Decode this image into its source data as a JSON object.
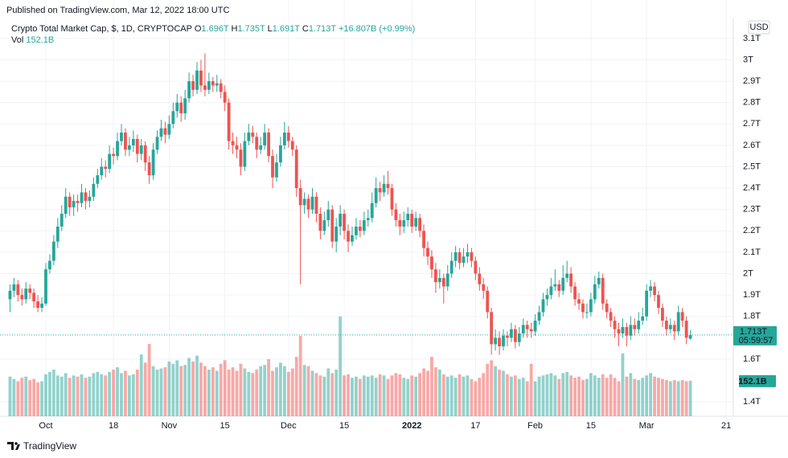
{
  "header": {
    "published": "Published on TradingView.com, Mar 12, 2022 18:00 UTC",
    "symbol": "Crypto Total Market Cap, $, 1D, CRYPTOCAP",
    "ohlc": [
      {
        "key": "O",
        "value": "1.696T"
      },
      {
        "key": "H",
        "value": "1.735T"
      },
      {
        "key": "L",
        "value": "1.691T"
      },
      {
        "key": "C",
        "value": "1.713T"
      }
    ],
    "change": "+16.807B (+0.99%)",
    "volume": {
      "key": "Vol",
      "value": "152.1B"
    }
  },
  "footer": "TradingView",
  "chart_data": {
    "type": "candlestick",
    "currency": "USD",
    "up_color": "#26a69a",
    "down_color": "#ef5350",
    "ylim": [
      1.333,
      3.186
    ],
    "yticks": [
      {
        "value": 3.1,
        "label": "3.1T"
      },
      {
        "value": 3.0,
        "label": "3T"
      },
      {
        "value": 2.9,
        "label": "2.9T"
      },
      {
        "value": 2.8,
        "label": "2.8T"
      },
      {
        "value": 2.7,
        "label": "2.7T"
      },
      {
        "value": 2.6,
        "label": "2.6T"
      },
      {
        "value": 2.5,
        "label": "2.5T"
      },
      {
        "value": 2.4,
        "label": "2.4T"
      },
      {
        "value": 2.3,
        "label": "2.3T"
      },
      {
        "value": 2.2,
        "label": "2.2T"
      },
      {
        "value": 2.1,
        "label": "2.1T"
      },
      {
        "value": 2.0,
        "label": "2T"
      },
      {
        "value": 1.9,
        "label": "1.9T"
      },
      {
        "value": 1.8,
        "label": "1.8T"
      },
      {
        "value": 1.6,
        "label": "1.6T"
      },
      {
        "value": 1.4,
        "label": "1.4T"
      }
    ],
    "xlim": [
      -0.9,
      181.8
    ],
    "xticks": [
      {
        "value": 9,
        "label": "Oct"
      },
      {
        "value": 26,
        "label": "18"
      },
      {
        "value": 40,
        "label": "Nov"
      },
      {
        "value": 54,
        "label": "15"
      },
      {
        "value": 70,
        "label": "Dec"
      },
      {
        "value": 84,
        "label": "15"
      },
      {
        "value": 101,
        "label": "2022"
      },
      {
        "value": 117,
        "label": "17"
      },
      {
        "value": 132,
        "label": "Feb"
      },
      {
        "value": 146,
        "label": "15"
      },
      {
        "value": 160,
        "label": "Mar"
      },
      {
        "value": 180,
        "label": "21"
      }
    ],
    "last_price_label": "1.713T",
    "countdown": "05:59:57",
    "last_volume_label": "152.1B",
    "candles": [
      [
        1.88,
        1.95,
        1.82,
        1.92
      ],
      [
        1.92,
        1.98,
        1.89,
        1.95
      ],
      [
        1.95,
        1.97,
        1.87,
        1.9
      ],
      [
        1.9,
        1.93,
        1.85,
        1.88
      ],
      [
        1.88,
        1.96,
        1.86,
        1.93
      ],
      [
        1.93,
        1.95,
        1.88,
        1.91
      ],
      [
        1.91,
        1.93,
        1.84,
        1.87
      ],
      [
        1.87,
        1.9,
        1.82,
        1.84
      ],
      [
        1.84,
        1.89,
        1.82,
        1.86
      ],
      [
        1.86,
        2.05,
        1.85,
        2.02
      ],
      [
        2.02,
        2.09,
        2.0,
        2.06
      ],
      [
        2.06,
        2.18,
        2.04,
        2.15
      ],
      [
        2.15,
        2.26,
        2.12,
        2.22
      ],
      [
        2.22,
        2.32,
        2.2,
        2.28
      ],
      [
        2.28,
        2.4,
        2.26,
        2.36
      ],
      [
        2.36,
        2.38,
        2.27,
        2.31
      ],
      [
        2.31,
        2.37,
        2.27,
        2.34
      ],
      [
        2.34,
        2.37,
        2.29,
        2.33
      ],
      [
        2.33,
        2.42,
        2.31,
        2.38
      ],
      [
        2.38,
        2.4,
        2.3,
        2.34
      ],
      [
        2.34,
        2.39,
        2.31,
        2.36
      ],
      [
        2.36,
        2.45,
        2.34,
        2.42
      ],
      [
        2.42,
        2.49,
        2.4,
        2.46
      ],
      [
        2.46,
        2.54,
        2.44,
        2.5
      ],
      [
        2.5,
        2.53,
        2.45,
        2.49
      ],
      [
        2.49,
        2.6,
        2.47,
        2.56
      ],
      [
        2.56,
        2.59,
        2.51,
        2.55
      ],
      [
        2.55,
        2.66,
        2.53,
        2.62
      ],
      [
        2.62,
        2.7,
        2.6,
        2.66
      ],
      [
        2.66,
        2.68,
        2.55,
        2.58
      ],
      [
        2.58,
        2.64,
        2.55,
        2.6
      ],
      [
        2.6,
        2.67,
        2.57,
        2.63
      ],
      [
        2.63,
        2.65,
        2.52,
        2.56
      ],
      [
        2.56,
        2.63,
        2.53,
        2.6
      ],
      [
        2.6,
        2.62,
        2.48,
        2.52
      ],
      [
        2.52,
        2.55,
        2.42,
        2.46
      ],
      [
        2.46,
        2.61,
        2.44,
        2.58
      ],
      [
        2.58,
        2.67,
        2.56,
        2.64
      ],
      [
        2.64,
        2.72,
        2.62,
        2.68
      ],
      [
        2.68,
        2.71,
        2.61,
        2.65
      ],
      [
        2.65,
        2.74,
        2.63,
        2.7
      ],
      [
        2.7,
        2.8,
        2.68,
        2.76
      ],
      [
        2.76,
        2.84,
        2.73,
        2.8
      ],
      [
        2.8,
        2.83,
        2.71,
        2.75
      ],
      [
        2.75,
        2.86,
        2.72,
        2.82
      ],
      [
        2.82,
        2.94,
        2.8,
        2.9
      ],
      [
        2.9,
        2.93,
        2.83,
        2.86
      ],
      [
        2.86,
        2.99,
        2.84,
        2.95
      ],
      [
        2.95,
        3.0,
        2.85,
        2.88
      ],
      [
        2.88,
        3.03,
        2.83,
        2.86
      ],
      [
        2.86,
        2.94,
        2.84,
        2.9
      ],
      [
        2.9,
        2.92,
        2.85,
        2.88
      ],
      [
        2.88,
        2.93,
        2.85,
        2.89
      ],
      [
        2.89,
        2.91,
        2.82,
        2.85
      ],
      [
        2.85,
        2.88,
        2.76,
        2.8
      ],
      [
        2.8,
        2.82,
        2.58,
        2.62
      ],
      [
        2.62,
        2.66,
        2.56,
        2.6
      ],
      [
        2.6,
        2.64,
        2.54,
        2.58
      ],
      [
        2.58,
        2.61,
        2.46,
        2.5
      ],
      [
        2.5,
        2.66,
        2.48,
        2.62
      ],
      [
        2.62,
        2.7,
        2.6,
        2.66
      ],
      [
        2.66,
        2.69,
        2.61,
        2.64
      ],
      [
        2.64,
        2.66,
        2.54,
        2.58
      ],
      [
        2.58,
        2.64,
        2.56,
        2.6
      ],
      [
        2.6,
        2.7,
        2.58,
        2.66
      ],
      [
        2.66,
        2.68,
        2.52,
        2.55
      ],
      [
        2.55,
        2.58,
        2.4,
        2.45
      ],
      [
        2.45,
        2.56,
        2.43,
        2.52
      ],
      [
        2.52,
        2.64,
        2.5,
        2.6
      ],
      [
        2.6,
        2.71,
        2.58,
        2.66
      ],
      [
        2.66,
        2.69,
        2.59,
        2.62
      ],
      [
        2.62,
        2.64,
        2.55,
        2.58
      ],
      [
        2.58,
        2.6,
        2.36,
        2.4
      ],
      [
        2.4,
        2.44,
        1.95,
        2.32
      ],
      [
        2.32,
        2.38,
        2.28,
        2.35
      ],
      [
        2.35,
        2.37,
        2.26,
        2.3
      ],
      [
        2.3,
        2.4,
        2.28,
        2.36
      ],
      [
        2.36,
        2.38,
        2.24,
        2.28
      ],
      [
        2.28,
        2.31,
        2.16,
        2.2
      ],
      [
        2.2,
        2.29,
        2.18,
        2.25
      ],
      [
        2.25,
        2.34,
        2.22,
        2.3
      ],
      [
        2.3,
        2.32,
        2.12,
        2.15
      ],
      [
        2.15,
        2.26,
        2.1,
        2.22
      ],
      [
        2.22,
        2.32,
        2.18,
        2.28
      ],
      [
        2.28,
        2.3,
        2.16,
        2.2
      ],
      [
        2.2,
        2.23,
        2.1,
        2.15
      ],
      [
        2.15,
        2.22,
        2.13,
        2.18
      ],
      [
        2.18,
        2.26,
        2.16,
        2.22
      ],
      [
        2.22,
        2.25,
        2.17,
        2.2
      ],
      [
        2.2,
        2.29,
        2.18,
        2.25
      ],
      [
        2.25,
        2.3,
        2.22,
        2.26
      ],
      [
        2.26,
        2.38,
        2.24,
        2.33
      ],
      [
        2.33,
        2.45,
        2.31,
        2.4
      ],
      [
        2.4,
        2.43,
        2.34,
        2.38
      ],
      [
        2.38,
        2.46,
        2.36,
        2.42
      ],
      [
        2.42,
        2.48,
        2.37,
        2.4
      ],
      [
        2.4,
        2.42,
        2.27,
        2.3
      ],
      [
        2.3,
        2.33,
        2.22,
        2.25
      ],
      [
        2.25,
        2.28,
        2.18,
        2.22
      ],
      [
        2.22,
        2.29,
        2.19,
        2.25
      ],
      [
        2.25,
        2.31,
        2.22,
        2.28
      ],
      [
        2.28,
        2.3,
        2.19,
        2.22
      ],
      [
        2.22,
        2.29,
        2.2,
        2.26
      ],
      [
        2.26,
        2.28,
        2.17,
        2.2
      ],
      [
        2.2,
        2.23,
        2.08,
        2.12
      ],
      [
        2.12,
        2.15,
        2.04,
        2.08
      ],
      [
        2.08,
        2.11,
        1.98,
        2.02
      ],
      [
        2.02,
        2.05,
        1.91,
        1.96
      ],
      [
        1.96,
        2.02,
        1.93,
        1.98
      ],
      [
        1.98,
        2.0,
        1.86,
        1.94
      ],
      [
        1.94,
        2.04,
        1.92,
        2.0
      ],
      [
        2.0,
        2.1,
        1.98,
        2.06
      ],
      [
        2.06,
        2.13,
        2.03,
        2.1
      ],
      [
        2.1,
        2.12,
        2.02,
        2.05
      ],
      [
        2.05,
        2.12,
        2.03,
        2.08
      ],
      [
        2.08,
        2.14,
        2.05,
        2.1
      ],
      [
        2.1,
        2.12,
        2.03,
        2.06
      ],
      [
        2.06,
        2.08,
        1.97,
        2.0
      ],
      [
        2.0,
        2.03,
        1.92,
        1.95
      ],
      [
        1.95,
        1.98,
        1.88,
        1.92
      ],
      [
        1.92,
        1.94,
        1.79,
        1.82
      ],
      [
        1.82,
        1.84,
        1.62,
        1.67
      ],
      [
        1.67,
        1.74,
        1.64,
        1.7
      ],
      [
        1.7,
        1.73,
        1.62,
        1.66
      ],
      [
        1.66,
        1.74,
        1.64,
        1.71
      ],
      [
        1.71,
        1.73,
        1.66,
        1.7
      ],
      [
        1.7,
        1.77,
        1.68,
        1.74
      ],
      [
        1.74,
        1.76,
        1.65,
        1.68
      ],
      [
        1.68,
        1.75,
        1.66,
        1.72
      ],
      [
        1.72,
        1.79,
        1.7,
        1.76
      ],
      [
        1.76,
        1.78,
        1.7,
        1.74
      ],
      [
        1.74,
        1.77,
        1.7,
        1.73
      ],
      [
        1.73,
        1.81,
        1.71,
        1.78
      ],
      [
        1.78,
        1.85,
        1.76,
        1.82
      ],
      [
        1.82,
        1.91,
        1.8,
        1.88
      ],
      [
        1.88,
        1.93,
        1.85,
        1.9
      ],
      [
        1.9,
        1.98,
        1.88,
        1.94
      ],
      [
        1.94,
        2.02,
        1.92,
        1.95
      ],
      [
        1.95,
        1.97,
        1.89,
        1.92
      ],
      [
        1.92,
        2.04,
        1.9,
        1.98
      ],
      [
        1.98,
        2.06,
        1.96,
        2.0
      ],
      [
        2.0,
        2.03,
        1.91,
        1.94
      ],
      [
        1.94,
        1.96,
        1.85,
        1.88
      ],
      [
        1.88,
        1.91,
        1.83,
        1.86
      ],
      [
        1.86,
        1.88,
        1.79,
        1.82
      ],
      [
        1.82,
        1.86,
        1.79,
        1.82
      ],
      [
        1.82,
        1.91,
        1.8,
        1.88
      ],
      [
        1.88,
        1.99,
        1.86,
        1.95
      ],
      [
        1.95,
        2.01,
        1.93,
        1.98
      ],
      [
        1.98,
        2.0,
        1.83,
        1.86
      ],
      [
        1.86,
        1.88,
        1.79,
        1.82
      ],
      [
        1.82,
        1.84,
        1.75,
        1.78
      ],
      [
        1.78,
        1.8,
        1.7,
        1.74
      ],
      [
        1.74,
        1.77,
        1.66,
        1.72
      ],
      [
        1.72,
        1.79,
        1.7,
        1.75
      ],
      [
        1.75,
        1.77,
        1.66,
        1.71
      ],
      [
        1.71,
        1.8,
        1.69,
        1.76
      ],
      [
        1.76,
        1.79,
        1.71,
        1.74
      ],
      [
        1.74,
        1.82,
        1.72,
        1.78
      ],
      [
        1.78,
        1.84,
        1.76,
        1.8
      ],
      [
        1.8,
        1.95,
        1.78,
        1.92
      ],
      [
        1.92,
        1.97,
        1.89,
        1.94
      ],
      [
        1.94,
        1.96,
        1.87,
        1.9
      ],
      [
        1.9,
        1.92,
        1.81,
        1.84
      ],
      [
        1.84,
        1.86,
        1.75,
        1.78
      ],
      [
        1.78,
        1.8,
        1.71,
        1.74
      ],
      [
        1.74,
        1.79,
        1.72,
        1.76
      ],
      [
        1.76,
        1.78,
        1.69,
        1.73
      ],
      [
        1.73,
        1.85,
        1.71,
        1.82
      ],
      [
        1.82,
        1.84,
        1.75,
        1.78
      ],
      [
        1.78,
        1.8,
        1.67,
        1.7
      ],
      [
        1.696,
        1.735,
        1.691,
        1.713
      ]
    ],
    "volume": [
      170,
      160,
      150,
      165,
      170,
      155,
      160,
      145,
      150,
      180,
      190,
      200,
      175,
      170,
      185,
      165,
      175,
      170,
      180,
      165,
      170,
      185,
      190,
      180,
      175,
      190,
      200,
      210,
      185,
      195,
      175,
      180,
      200,
      265,
      230,
      310,
      215,
      200,
      205,
      210,
      235,
      225,
      240,
      215,
      220,
      250,
      235,
      260,
      230,
      215,
      200,
      210,
      195,
      225,
      240,
      200,
      210,
      195,
      225,
      205,
      190,
      185,
      200,
      215,
      220,
      245,
      195,
      210,
      230,
      215,
      190,
      205,
      255,
      345,
      220,
      215,
      195,
      185,
      175,
      170,
      205,
      185,
      200,
      428,
      175,
      180,
      165,
      170,
      160,
      175,
      170,
      175,
      165,
      180,
      175,
      160,
      175,
      185,
      180,
      165,
      160,
      175,
      170,
      185,
      205,
      195,
      255,
      210,
      200,
      180,
      170,
      175,
      165,
      180,
      170,
      175,
      160,
      150,
      165,
      185,
      225,
      240,
      215,
      200,
      195,
      180,
      170,
      175,
      160,
      165,
      150,
      225,
      150,
      170,
      175,
      180,
      185,
      175,
      160,
      185,
      190,
      175,
      165,
      170,
      155,
      160,
      185,
      175,
      165,
      180,
      165,
      180,
      165,
      150,
      270,
      170,
      185,
      160,
      155,
      165,
      175,
      185,
      170,
      165,
      160,
      155,
      150,
      155,
      150,
      155,
      150,
      152.1
    ]
  }
}
